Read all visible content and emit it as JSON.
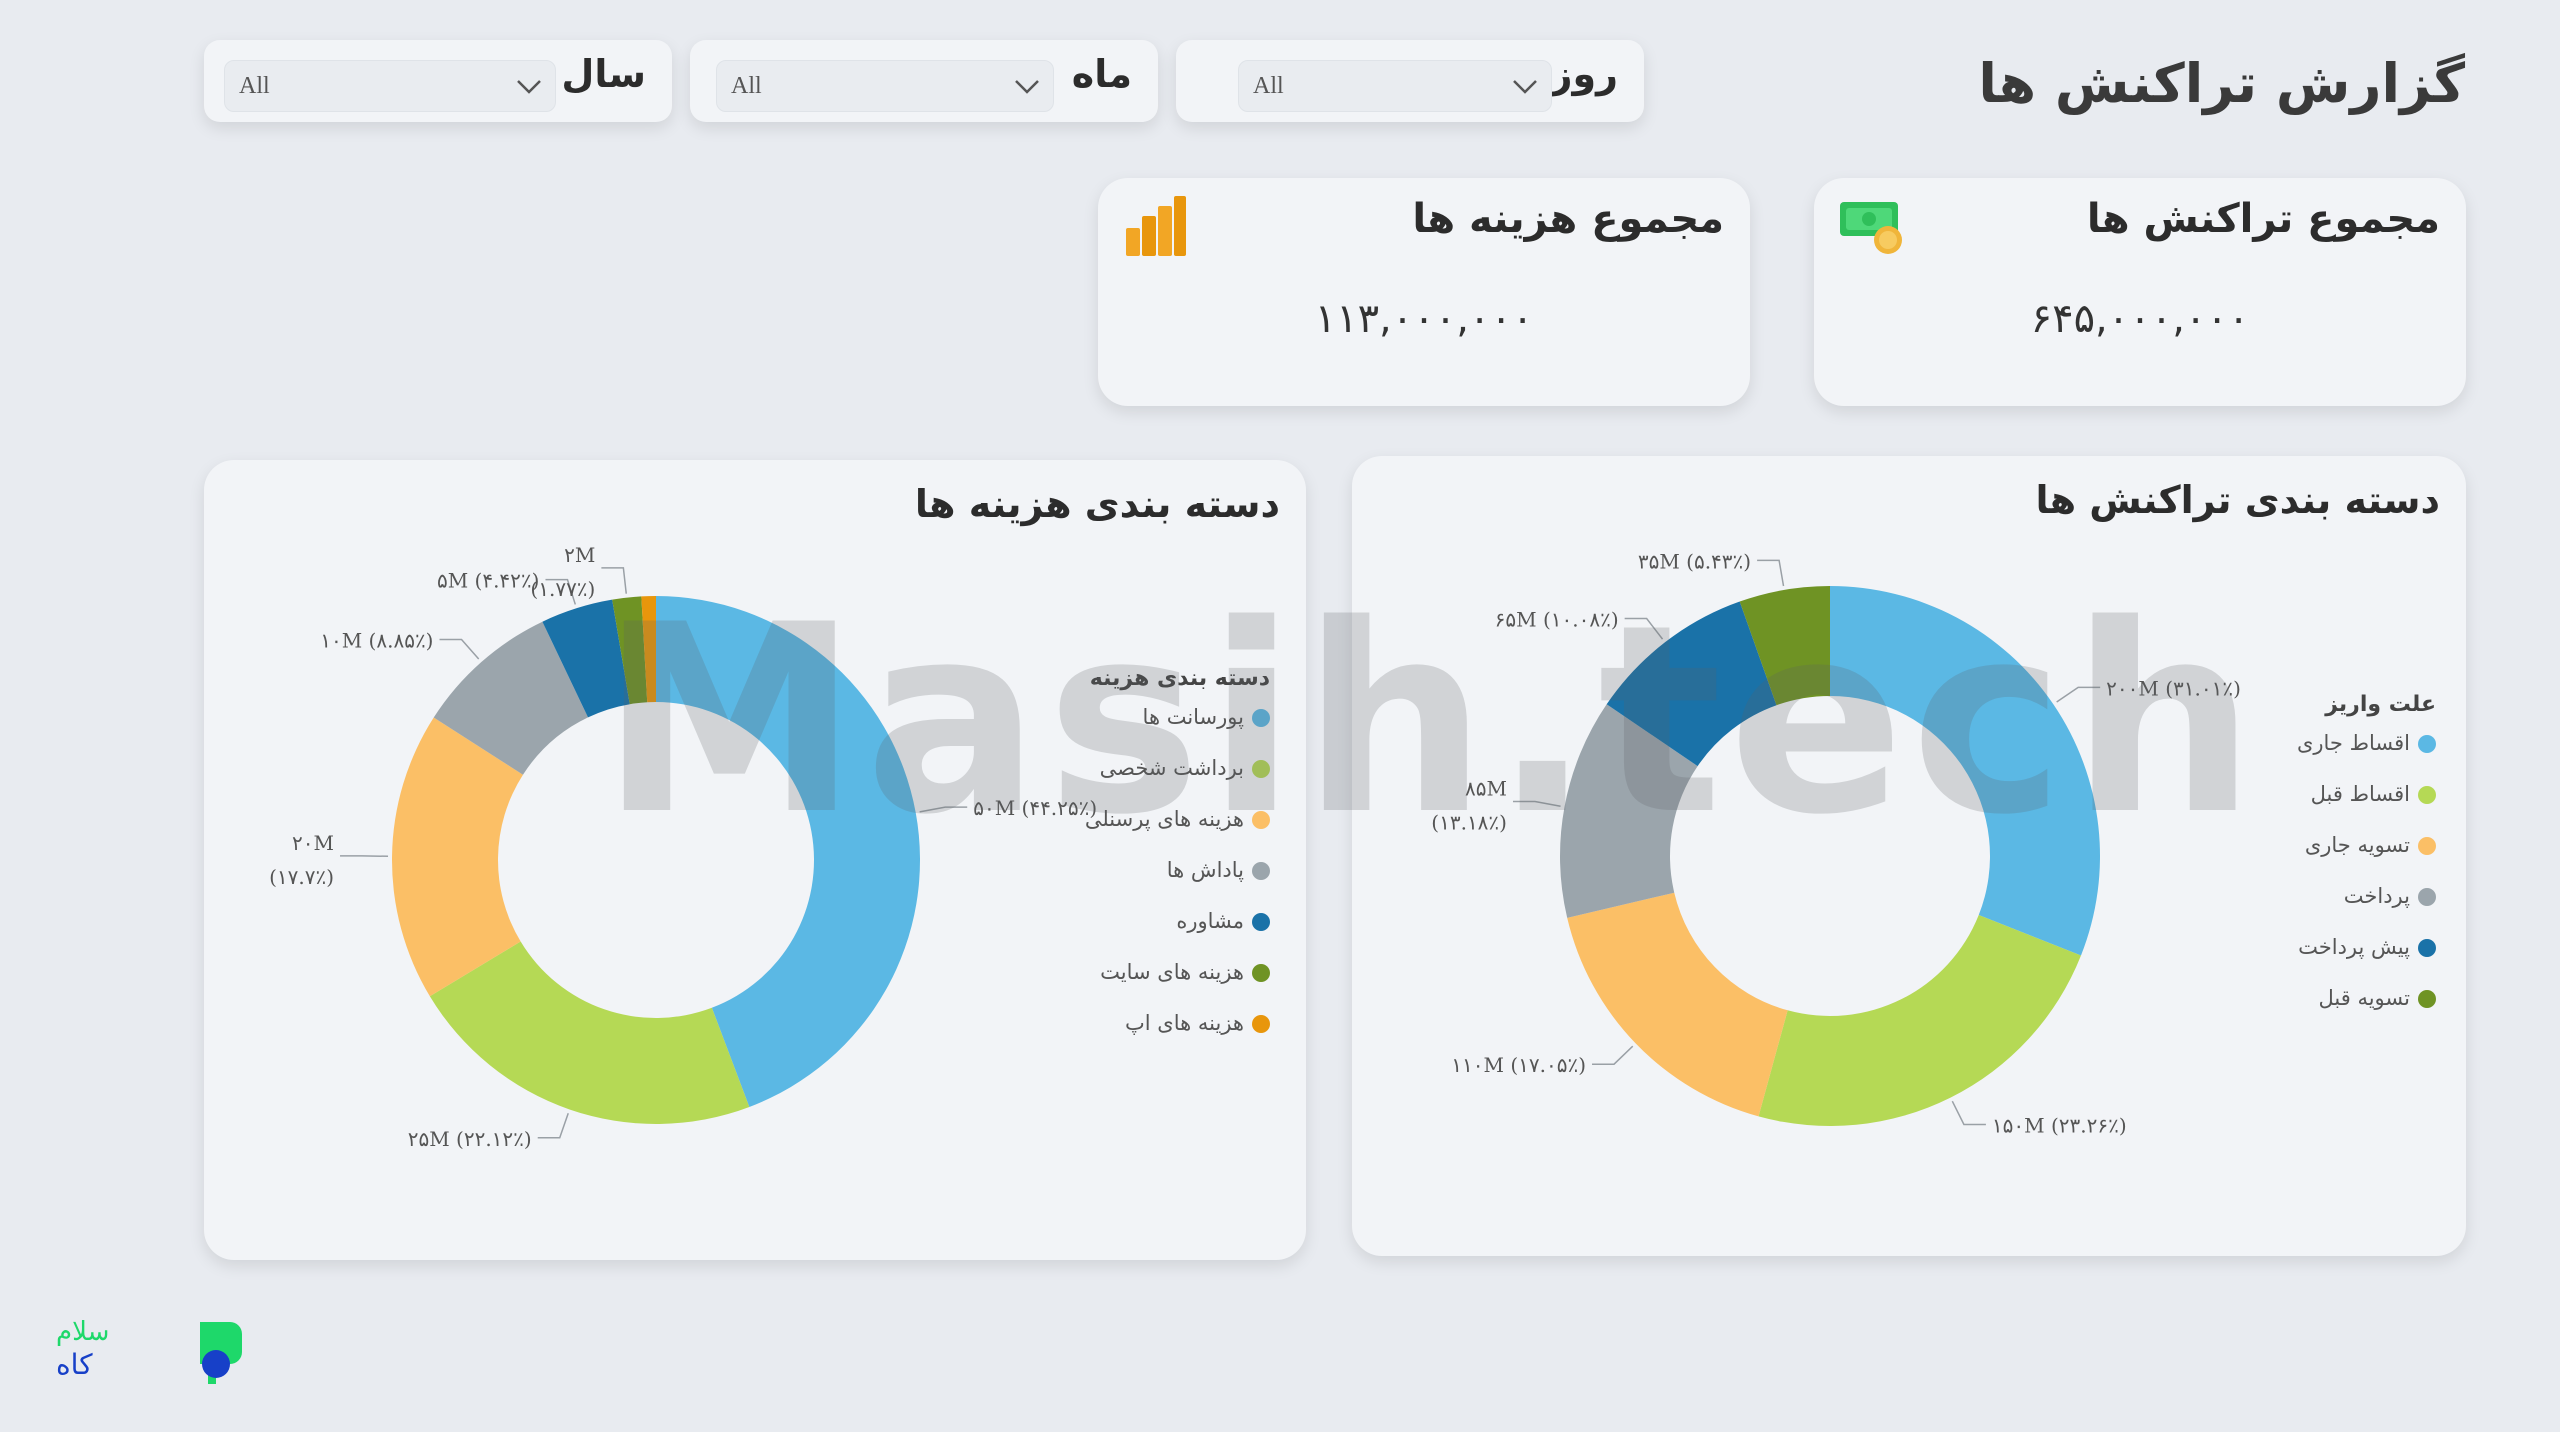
{
  "header": {
    "title": "گزارش تراکنش ها"
  },
  "filters": [
    {
      "label": "روز",
      "value": "All"
    },
    {
      "label": "ماه",
      "value": "All"
    },
    {
      "label": "سال",
      "value": "All"
    }
  ],
  "kpis": {
    "transactions": {
      "title": "مجموع تراکنش ها",
      "value": "۶۴۵,۰۰۰,۰۰۰",
      "icon": "money-icon"
    },
    "expenses": {
      "title": "مجموع هزینه ها",
      "value": "۱۱۳,۰۰۰,۰۰۰",
      "icon": "bar-chart-icon"
    }
  },
  "chart_data": [
    {
      "type": "pie",
      "title": "دسته بندی تراکنش ها",
      "legend_title": "علت واریز",
      "legend_position": "right",
      "categories": [
        "اقساط جاری",
        "اقساط قبل",
        "تسویه جاری",
        "پرداخت",
        "پیش پرداخت",
        "تسویه قبل"
      ],
      "values": [
        200,
        150,
        110,
        85,
        65,
        35
      ],
      "colors": [
        "#5bb8e4",
        "#b5d955",
        "#fbbf66",
        "#9ba5ac",
        "#1a72a8",
        "#6f9324"
      ],
      "data_labels": [
        [
          "۲۰۰M (۳۱.۰۱٪)"
        ],
        [
          "۱۵۰M (۲۳.۲۶٪)"
        ],
        [
          "۱۱۰M (۱۷.۰۵٪)"
        ],
        [
          "۸۵M",
          "(۱۳.۱۸٪)"
        ],
        [
          "۶۵M (۱۰.۰۸٪)"
        ],
        [
          "۳۵M (۵.۴۳٪)"
        ]
      ]
    },
    {
      "type": "pie",
      "title": "دسته بندی هزینه ها",
      "legend_title": "دسته بندی هزینه",
      "legend_position": "right",
      "categories": [
        "پورسانت ها",
        "برداشت شخصی",
        "هزینه های پرسنلی",
        "پاداش ها",
        "مشاوره",
        "هزینه های سایت",
        "هزینه های اپ"
      ],
      "values": [
        50,
        25,
        20,
        10,
        5,
        2,
        1
      ],
      "colors": [
        "#5bb8e4",
        "#b5d955",
        "#fbbf66",
        "#9ba5ac",
        "#1a72a8",
        "#6f9324",
        "#e8960c"
      ],
      "data_labels": [
        [
          "۵۰M (۴۴.۲۵٪)"
        ],
        [
          "۲۵M (۲۲.۱۲٪)"
        ],
        [
          "۲۰M",
          "(۱۷.۷٪)"
        ],
        [
          "۱۰M (۸.۸۵٪)"
        ],
        [
          "۵M (۴.۴۲٪)"
        ],
        [
          "۲M",
          "(۱.۷۷٪)"
        ],
        []
      ]
    }
  ],
  "watermark": "Masih.tech",
  "logo": {
    "text": "سلام کاه"
  }
}
